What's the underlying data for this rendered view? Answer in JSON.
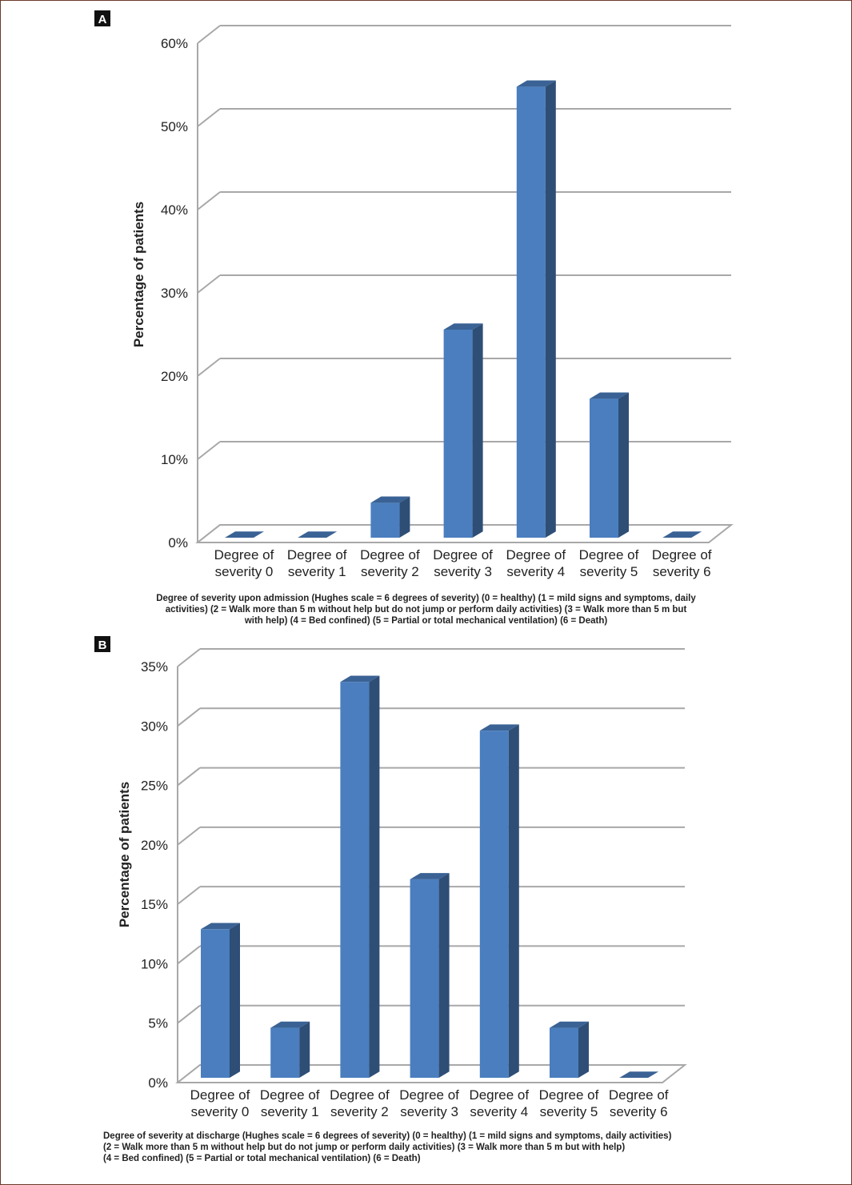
{
  "chart_data": [
    {
      "type": "bar",
      "panel_label": "A",
      "categories": [
        [
          "Degree of",
          "severity 0"
        ],
        [
          "Degree of",
          "severity 1"
        ],
        [
          "Degree of",
          "severity 2"
        ],
        [
          "Degree of",
          "severity 3"
        ],
        [
          "Degree of",
          "severity 4"
        ],
        [
          "Degree of",
          "severity 5"
        ],
        [
          "Degree of",
          "severity 6"
        ]
      ],
      "values": [
        0,
        0,
        4.2,
        25,
        54.2,
        16.7,
        0
      ],
      "ylabel": "Percentage of patients",
      "ylim": [
        0,
        60
      ],
      "yticks": [
        0,
        10,
        20,
        30,
        40,
        50,
        60
      ],
      "ytick_labels": [
        "0%",
        "10%",
        "20%",
        "30%",
        "40%",
        "50%",
        "60%"
      ],
      "grid": true,
      "bar_color": "#4a7ebf",
      "caption_lines": [
        "Degree of severity upon admission (Hughes scale = 6 degrees of severity) (0 = healthy) (1 = mild signs and symptoms, daily",
        "activities) (2 = Walk more than 5 m without help but do not jump or perform daily activities) (3 = Walk more than 5 m but",
        "with help) (4 = Bed confined) (5 = Partial or total mechanical ventilation) (6 = Death)"
      ]
    },
    {
      "type": "bar",
      "panel_label": "B",
      "categories": [
        [
          "Degree of",
          "severity 0"
        ],
        [
          "Degree of",
          "severity 1"
        ],
        [
          "Degree of",
          "severity 2"
        ],
        [
          "Degree of",
          "severity 3"
        ],
        [
          "Degree of",
          "severity 4"
        ],
        [
          "Degree of",
          "severity 5"
        ],
        [
          "Degree of",
          "severity 6"
        ]
      ],
      "values": [
        12.5,
        4.2,
        33.3,
        16.7,
        29.2,
        4.2,
        0
      ],
      "ylabel": "Percentage of patients",
      "ylim": [
        0,
        35
      ],
      "yticks": [
        0,
        5,
        10,
        15,
        20,
        25,
        30,
        35
      ],
      "ytick_labels": [
        "0%",
        "5%",
        "10%",
        "15%",
        "20%",
        "25%",
        "30%",
        "35%"
      ],
      "grid": true,
      "bar_color": "#4a7ebf",
      "caption_lines": [
        "Degree of severity at discharge (Hughes scale = 6 degrees of severity) (0 = healthy) (1 = mild signs and symptoms, daily activities)",
        "(2 = Walk more than 5 m without help but do not jump or perform daily activities) (3 = Walk more than 5 m but with help)",
        "(4 = Bed confined) (5 = Partial or total mechanical ventilation) (6 = Death)"
      ]
    }
  ]
}
